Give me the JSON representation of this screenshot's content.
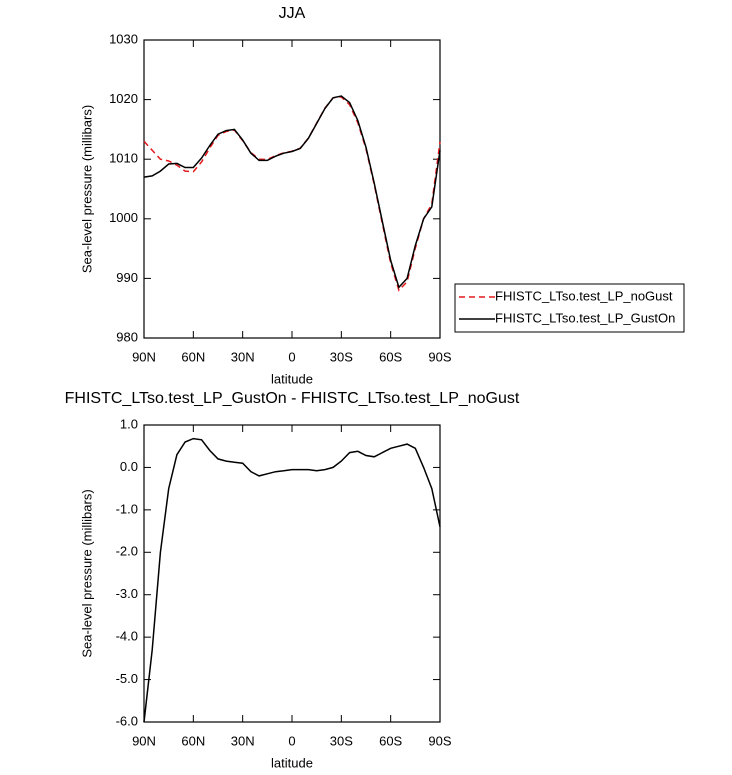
{
  "chart_data": [
    {
      "type": "line",
      "title": "JJA",
      "xlabel": "latitude",
      "ylabel": "Sea-level pressure (millibars)",
      "x": [
        90,
        85,
        80,
        75,
        70,
        65,
        60,
        55,
        50,
        45,
        40,
        35,
        30,
        25,
        20,
        15,
        10,
        5,
        0,
        -5,
        -10,
        -15,
        -20,
        -25,
        -30,
        -35,
        -40,
        -45,
        -50,
        -55,
        -60,
        -65,
        -70,
        -75,
        -80,
        -85,
        -90
      ],
      "xlim": [
        90,
        -90
      ],
      "xticks": [
        {
          "value": 90,
          "label": "90N"
        },
        {
          "value": 60,
          "label": "60N"
        },
        {
          "value": 30,
          "label": "30N"
        },
        0,
        {
          "value": -30,
          "label": "30S"
        },
        {
          "value": -60,
          "label": "60S"
        },
        {
          "value": -90,
          "label": "90S"
        }
      ],
      "ylim": [
        980,
        1030
      ],
      "yticks": [
        980,
        990,
        1000,
        1010,
        1020,
        1030
      ],
      "legend": "right",
      "series": [
        {
          "name": "FHISTC_LTso.test_LP_noGust",
          "color": "#e41a1c",
          "style": "dashed",
          "values": [
            1013.0,
            1011.5,
            1010.0,
            1009.7,
            1009.0,
            1008.0,
            1007.9,
            1009.55,
            1011.9,
            1014.0,
            1014.65,
            1014.88,
            1013.1,
            1011.1,
            1010.0,
            1009.95,
            1010.6,
            1011.08,
            1011.35,
            1011.85,
            1013.55,
            1016.08,
            1018.55,
            1020.3,
            1020.45,
            1019.15,
            1016.12,
            1011.72,
            1005.75,
            999.15,
            992.55,
            988.0,
            989.45,
            995.05,
            1000.0,
            1002.5,
            1012.9
          ]
        },
        {
          "name": "FHISTC_LTso.test_LP_GustOn",
          "color": "#000000",
          "style": "solid",
          "values": [
            1007.0,
            1007.2,
            1008.0,
            1009.2,
            1009.3,
            1008.6,
            1008.6,
            1010.2,
            1012.3,
            1014.2,
            1014.8,
            1015.0,
            1013.2,
            1011.0,
            1009.8,
            1009.8,
            1010.5,
            1011.0,
            1011.3,
            1011.8,
            1013.5,
            1016.0,
            1018.5,
            1020.3,
            1020.6,
            1019.5,
            1016.5,
            1012.0,
            1006.0,
            999.5,
            993.0,
            988.5,
            990.0,
            995.5,
            1000.0,
            1002.0,
            1011.5
          ]
        }
      ]
    },
    {
      "type": "line",
      "title": "FHISTC_LTso.test_LP_GustOn - FHISTC_LTso.test_LP_noGust",
      "xlabel": "latitude",
      "ylabel": "Sea-level pressure (millibars)",
      "x": [
        90,
        85,
        80,
        75,
        70,
        65,
        60,
        55,
        50,
        45,
        40,
        35,
        30,
        25,
        20,
        15,
        10,
        5,
        0,
        -5,
        -10,
        -15,
        -20,
        -25,
        -30,
        -35,
        -40,
        -45,
        -50,
        -55,
        -60,
        -65,
        -70,
        -75,
        -80,
        -85,
        -90
      ],
      "xlim": [
        90,
        -90
      ],
      "xticks": [
        {
          "value": 90,
          "label": "90N"
        },
        {
          "value": 60,
          "label": "60N"
        },
        {
          "value": 30,
          "label": "30N"
        },
        0,
        {
          "value": -30,
          "label": "30S"
        },
        {
          "value": -60,
          "label": "60S"
        },
        {
          "value": -90,
          "label": "90S"
        }
      ],
      "ylim": [
        -6,
        1
      ],
      "yticks": [
        {
          "value": 1,
          "label": "1.0"
        },
        {
          "value": 0,
          "label": "0.0"
        },
        {
          "value": -1,
          "label": "-1.0"
        },
        {
          "value": -2,
          "label": "-2.0"
        },
        {
          "value": -3,
          "label": "-3.0"
        },
        {
          "value": -4,
          "label": "-4.0"
        },
        {
          "value": -5,
          "label": "-5.0"
        },
        {
          "value": -6,
          "label": "-6.0"
        }
      ],
      "color": "#000000",
      "values": [
        -6.0,
        -4.3,
        -2.0,
        -0.5,
        0.3,
        0.6,
        0.68,
        0.65,
        0.4,
        0.2,
        0.15,
        0.12,
        0.1,
        -0.1,
        -0.2,
        -0.15,
        -0.1,
        -0.08,
        -0.05,
        -0.05,
        -0.05,
        -0.08,
        -0.05,
        0.0,
        0.15,
        0.35,
        0.38,
        0.28,
        0.25,
        0.35,
        0.45,
        0.5,
        0.55,
        0.45,
        0.0,
        -0.5,
        -1.4
      ]
    }
  ]
}
